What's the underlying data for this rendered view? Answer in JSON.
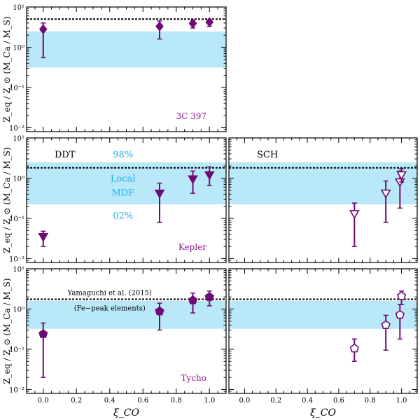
{
  "figure": {
    "ylabel": "Z_eq / Z_⊙ (M_Ca / M_S)",
    "xlabel": "ξ_CO",
    "colors": {
      "marker": "#6e0a73",
      "band": "#b9e8f8",
      "band_text": "#1eb4e8",
      "text_purple": "#8b1a8e"
    }
  },
  "chart_data": [
    {
      "id": "3c397",
      "type": "scatter",
      "title": "3C 397",
      "xlim": [
        -0.1,
        1.1
      ],
      "ylim": [
        0.008,
        10
      ],
      "yscale": "log",
      "x_ticks": [
        0.0,
        0.2,
        0.4,
        0.6,
        0.8,
        1.0
      ],
      "y_ticks": [
        0.01,
        0.1,
        1,
        10
      ],
      "y_tick_labels": [
        "10⁻²",
        "10⁻¹",
        "10⁰",
        "10¹"
      ],
      "band": [
        0.32,
        2.4
      ],
      "hline": 5.0,
      "series": [
        {
          "name": "DDT",
          "marker": "diamond",
          "filled": true,
          "points": [
            {
              "x": 0.0,
              "y": 2.8,
              "lo": 0.55,
              "hi": 4.0
            },
            {
              "x": 0.7,
              "y": 3.3,
              "lo": 1.6,
              "hi": 4.5
            },
            {
              "x": 0.9,
              "y": 3.9,
              "lo": 3.0,
              "hi": 4.6
            },
            {
              "x": 1.0,
              "y": 4.2,
              "lo": 3.3,
              "hi": 4.7
            }
          ]
        }
      ],
      "annotations": [
        {
          "text": "3C 397",
          "color": "#8b1a8e",
          "pos": "bottom-right"
        }
      ]
    },
    {
      "id": "kepler-ddt",
      "type": "scatter",
      "title": "Kepler DDT",
      "xlim": [
        -0.1,
        1.1
      ],
      "ylim": [
        0.008,
        10
      ],
      "yscale": "log",
      "x_ticks": [
        0.0,
        0.2,
        0.4,
        0.6,
        0.8,
        1.0
      ],
      "y_ticks": [
        0.01,
        0.1,
        1,
        10
      ],
      "y_tick_labels": [
        "10⁻²",
        "10⁻¹",
        "10⁰",
        "10¹"
      ],
      "band": [
        0.23,
        2.4
      ],
      "hline": 1.8,
      "series": [
        {
          "name": "DDT",
          "marker": "triangle-down",
          "filled": true,
          "points": [
            {
              "x": 0.0,
              "y": 0.035,
              "lo": 0.02,
              "hi": 0.048
            },
            {
              "x": 0.7,
              "y": 0.42,
              "lo": 0.08,
              "hi": 0.75
            },
            {
              "x": 0.9,
              "y": 0.95,
              "lo": 0.42,
              "hi": 1.5
            },
            {
              "x": 1.0,
              "y": 1.2,
              "lo": 0.65,
              "hi": 1.9
            }
          ]
        }
      ],
      "annotations": [
        {
          "text": "DDT",
          "color": "#000000",
          "pos": "top-left"
        },
        {
          "text": "98%",
          "color": "#1eb4e8",
          "pos": "band-top"
        },
        {
          "text": "Local",
          "color": "#1eb4e8",
          "pos": "band-mid-upper"
        },
        {
          "text": "MDF",
          "color": "#1eb4e8",
          "pos": "band-mid-lower"
        },
        {
          "text": "02%",
          "color": "#1eb4e8",
          "pos": "band-bottom"
        },
        {
          "text": "Kepler",
          "color": "#8b1a8e",
          "pos": "bottom-right"
        }
      ]
    },
    {
      "id": "kepler-sch",
      "type": "scatter",
      "title": "Kepler SCH",
      "xlim": [
        -0.1,
        1.1
      ],
      "ylim": [
        0.008,
        10
      ],
      "yscale": "log",
      "x_ticks": [
        0.0,
        0.2,
        0.4,
        0.6,
        0.8,
        1.0
      ],
      "y_ticks": [
        0.01,
        0.1,
        1,
        10
      ],
      "y_tick_labels": [
        "10⁻²",
        "10⁻¹",
        "10⁰",
        "10¹"
      ],
      "band": [
        0.23,
        2.4
      ],
      "hline": 1.8,
      "series": [
        {
          "name": "SCH",
          "marker": "triangle-down",
          "filled": false,
          "points": [
            {
              "x": 0.7,
              "y": 0.13,
              "lo": 0.02,
              "hi": 0.24
            },
            {
              "x": 0.9,
              "y": 0.42,
              "lo": 0.08,
              "hi": 0.85
            },
            {
              "x": 0.99,
              "y": 0.8,
              "lo": 0.18,
              "hi": 1.5
            },
            {
              "x": 1.0,
              "y": 1.2,
              "lo": 0.8,
              "hi": 1.7
            }
          ]
        }
      ],
      "annotations": [
        {
          "text": "SCH",
          "color": "#000000",
          "pos": "top-left"
        }
      ]
    },
    {
      "id": "tycho-ddt",
      "type": "scatter",
      "title": "Tycho DDT",
      "xlim": [
        -0.1,
        1.1
      ],
      "ylim": [
        0.008,
        10
      ],
      "yscale": "log",
      "x_ticks": [
        0.0,
        0.2,
        0.4,
        0.6,
        0.8,
        1.0
      ],
      "x_tick_labels": [
        "0.0",
        "0.2",
        "0.4",
        "0.6",
        "0.8",
        "1.0"
      ],
      "y_ticks": [
        0.01,
        0.1,
        1,
        10
      ],
      "y_tick_labels": [
        "10⁻²",
        "10⁻¹",
        "10⁰",
        "10¹"
      ],
      "band": [
        0.33,
        1.55
      ],
      "hline": 1.75,
      "series": [
        {
          "name": "DDT",
          "marker": "pentagon",
          "filled": true,
          "points": [
            {
              "x": 0.0,
              "y": 0.24,
              "lo": 0.02,
              "hi": 0.45
            },
            {
              "x": 0.7,
              "y": 0.88,
              "lo": 0.3,
              "hi": 1.4
            },
            {
              "x": 0.9,
              "y": 1.65,
              "lo": 0.8,
              "hi": 2.5
            },
            {
              "x": 1.0,
              "y": 2.0,
              "lo": 1.2,
              "hi": 2.8
            }
          ]
        }
      ],
      "annotations": [
        {
          "text": "Yamaguchi et al. (2015)",
          "color": "#000000",
          "pos": "line-above"
        },
        {
          "text": "(Fe−peak elements)",
          "color": "#000000",
          "pos": "line-below"
        },
        {
          "text": "Tycho",
          "color": "#8b1a8e",
          "pos": "bottom-right"
        }
      ]
    },
    {
      "id": "tycho-sch",
      "type": "scatter",
      "title": "Tycho SCH",
      "xlim": [
        -0.1,
        1.1
      ],
      "ylim": [
        0.008,
        10
      ],
      "yscale": "log",
      "x_ticks": [
        0.0,
        0.2,
        0.4,
        0.6,
        0.8,
        1.0
      ],
      "x_tick_labels": [
        "0.0",
        "0.2",
        "0.4",
        "0.6",
        "0.8",
        "1.0"
      ],
      "y_ticks": [
        0.01,
        0.1,
        1,
        10
      ],
      "y_tick_labels": [
        "10⁻²",
        "10⁻¹",
        "10⁰",
        "10¹"
      ],
      "band": [
        0.33,
        1.55
      ],
      "hline": 1.75,
      "series": [
        {
          "name": "SCH",
          "marker": "pentagon",
          "filled": false,
          "points": [
            {
              "x": 0.7,
              "y": 0.105,
              "lo": 0.05,
              "hi": 0.18
            },
            {
              "x": 0.9,
              "y": 0.4,
              "lo": 0.095,
              "hi": 0.7
            },
            {
              "x": 0.99,
              "y": 0.72,
              "lo": 0.18,
              "hi": 1.3
            },
            {
              "x": 1.0,
              "y": 2.1,
              "lo": 1.3,
              "hi": 2.8
            }
          ]
        }
      ],
      "annotations": []
    }
  ]
}
